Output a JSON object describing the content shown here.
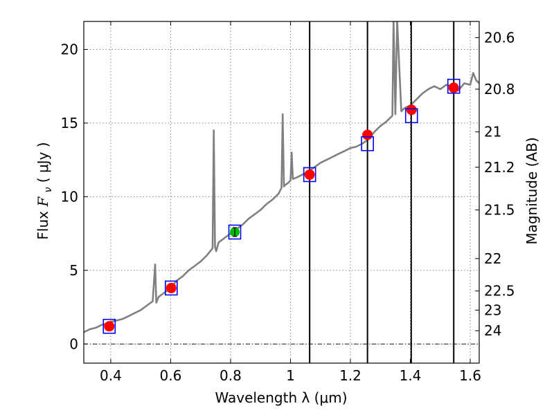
{
  "chart_data": {
    "type": "line",
    "xlabel": "Wavelength  λ (μm)",
    "ylabel": "Flux  F_ν  ( μJy )",
    "ylabel_parts": {
      "prefix": "Flux  ",
      "symbol": "F",
      "subscript": "ν",
      "unit": "  ( μJy )"
    },
    "y2label": "Magnitude (AB)",
    "xlim": [
      0.31,
      1.63
    ],
    "ylim": [
      -1.3,
      21.9
    ],
    "grid": true,
    "x_ticks": [
      0.4,
      0.6,
      0.8,
      1.0,
      1.2,
      1.4,
      1.6
    ],
    "x_tick_labels": [
      "0.4",
      "0.6",
      "0.8",
      "1",
      "1.2",
      "1.4",
      "1.6"
    ],
    "y_ticks": [
      0,
      5,
      10,
      15,
      20
    ],
    "y_tick_labels": [
      "0",
      "5",
      "10",
      "15",
      "20"
    ],
    "y2_ticks": [
      {
        "label": "20.6",
        "flux": 20.8
      },
      {
        "label": "20.8",
        "flux": 17.3
      },
      {
        "label": "21",
        "flux": 14.4
      },
      {
        "label": "21.2",
        "flux": 12.0
      },
      {
        "label": "21.5",
        "flux": 9.1
      },
      {
        "label": "22",
        "flux": 5.8
      },
      {
        "label": "22.5",
        "flux": 3.6
      },
      {
        "label": "23",
        "flux": 2.3
      },
      {
        "label": "24",
        "flux": 0.9
      }
    ],
    "colors": {
      "spectrum": "#808080",
      "box": "#0000ff",
      "model_point": "#ff0000",
      "observed_point": "#00bb00",
      "vline": "#000000"
    },
    "series": [
      {
        "name": "model spectrum",
        "type": "line",
        "x": [
          0.31,
          0.33,
          0.35,
          0.37,
          0.39,
          0.4,
          0.42,
          0.44,
          0.46,
          0.48,
          0.5,
          0.52,
          0.54,
          0.548,
          0.552,
          0.556,
          0.56,
          0.58,
          0.6,
          0.62,
          0.64,
          0.66,
          0.68,
          0.7,
          0.72,
          0.74,
          0.744,
          0.748,
          0.752,
          0.76,
          0.78,
          0.8,
          0.82,
          0.84,
          0.86,
          0.88,
          0.9,
          0.92,
          0.94,
          0.96,
          0.97,
          0.974,
          0.978,
          0.982,
          0.99,
          1.0,
          1.004,
          1.008,
          1.02,
          1.04,
          1.06,
          1.08,
          1.1,
          1.12,
          1.14,
          1.16,
          1.18,
          1.2,
          1.22,
          1.24,
          1.26,
          1.28,
          1.3,
          1.32,
          1.34,
          1.344,
          1.35,
          1.356,
          1.37,
          1.38,
          1.4,
          1.42,
          1.44,
          1.46,
          1.48,
          1.5,
          1.52,
          1.54,
          1.56,
          1.58,
          1.6,
          1.61,
          1.62,
          1.63
        ],
        "y": [
          0.8,
          1.0,
          1.1,
          1.3,
          1.4,
          1.5,
          1.6,
          1.7,
          1.9,
          2.1,
          2.3,
          2.6,
          2.9,
          5.4,
          2.8,
          3.0,
          3.2,
          3.5,
          3.8,
          4.3,
          4.6,
          5.0,
          5.3,
          5.6,
          6.0,
          6.5,
          14.5,
          6.6,
          6.3,
          6.9,
          7.2,
          7.5,
          7.8,
          8.1,
          8.5,
          8.8,
          9.1,
          9.5,
          9.8,
          10.2,
          10.6,
          15.6,
          10.7,
          10.8,
          10.9,
          11.1,
          13.0,
          11.2,
          11.3,
          11.5,
          11.7,
          12.0,
          12.3,
          12.5,
          12.7,
          12.9,
          13.1,
          13.3,
          13.4,
          13.6,
          13.9,
          14.4,
          14.8,
          15.1,
          15.5,
          22.0,
          15.6,
          22.0,
          15.8,
          16.0,
          16.2,
          16.6,
          17.0,
          17.3,
          17.5,
          17.3,
          17.6,
          17.5,
          17.2,
          17.7,
          17.6,
          18.4,
          17.9,
          17.7
        ]
      },
      {
        "name": "photometric boxes",
        "type": "box",
        "x": [
          0.395,
          0.602,
          0.814,
          1.064,
          1.257,
          1.404,
          1.545
        ],
        "y": [
          1.2,
          3.8,
          7.6,
          11.5,
          13.6,
          15.5,
          17.5
        ]
      },
      {
        "name": "model points",
        "type": "point",
        "x": [
          0.395,
          0.602,
          1.064,
          1.257,
          1.404,
          1.545
        ],
        "y": [
          1.2,
          3.8,
          11.5,
          14.2,
          15.9,
          17.4
        ]
      },
      {
        "name": "observed point",
        "type": "errorpoint",
        "x": [
          0.814
        ],
        "y": [
          7.6
        ],
        "yerr": [
          0.3
        ]
      },
      {
        "name": "vertical lines",
        "type": "vline",
        "x": [
          1.064,
          1.257,
          1.403,
          1.545
        ]
      }
    ]
  }
}
